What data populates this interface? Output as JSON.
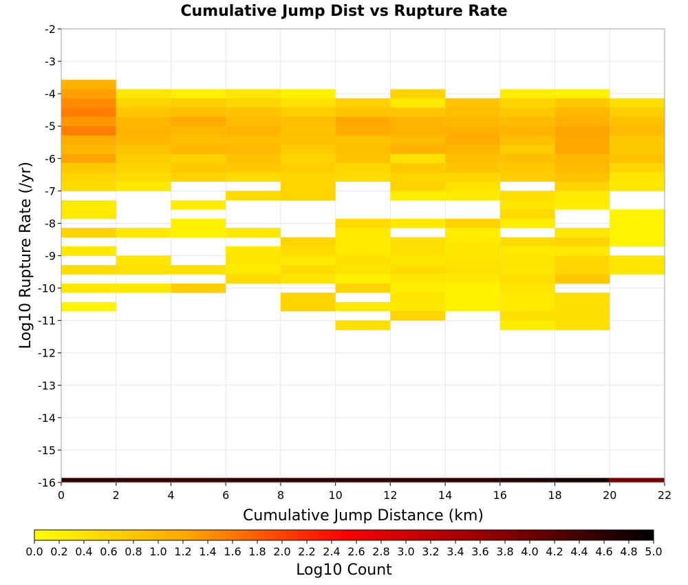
{
  "chart_data": {
    "type": "heatmap",
    "title": "Cumulative Jump Dist vs Rupture Rate",
    "xlabel": "Cumulative Jump Distance (km)",
    "ylabel": "Log10 Rupture Rate (/yr)",
    "xlim": [
      0,
      22
    ],
    "ylim": [
      -16,
      -2
    ],
    "xticks": [
      0,
      2,
      4,
      6,
      8,
      10,
      12,
      14,
      16,
      18,
      20,
      22
    ],
    "yticks": [
      -2,
      -3,
      -4,
      -5,
      -6,
      -7,
      -8,
      -9,
      -10,
      -11,
      -12,
      -13,
      -14,
      -15,
      -16
    ],
    "x_bin_width": 2,
    "y_bin_height": 0.2857,
    "grid": true,
    "colorbar": {
      "label": "Log10 Count",
      "min": 0.0,
      "max": 5.0,
      "ticks": [
        0.0,
        0.2,
        0.4,
        0.6,
        0.8,
        1.0,
        1.2,
        1.4,
        1.6,
        1.8,
        2.0,
        2.2,
        2.4,
        2.6,
        2.8,
        3.0,
        3.2,
        3.4,
        3.6,
        3.8,
        4.0,
        4.2,
        4.4,
        4.6,
        4.8,
        5.0
      ],
      "colors": [
        "#ffff00",
        "#ffa500",
        "#ff0000",
        "#8b0000",
        "#000000"
      ]
    },
    "columns": [
      {
        "x0": 0,
        "cells": [
          [
            -3.57,
            -3.86,
            1.05
          ],
          [
            -3.86,
            -4.14,
            1.3
          ],
          [
            -4.14,
            -4.43,
            1.45
          ],
          [
            -4.43,
            -4.71,
            1.55
          ],
          [
            -4.71,
            -5.0,
            1.35
          ],
          [
            -5.0,
            -5.29,
            1.55
          ],
          [
            -5.29,
            -5.57,
            1.15
          ],
          [
            -5.57,
            -5.86,
            1.0
          ],
          [
            -5.86,
            -6.14,
            1.25
          ],
          [
            -6.14,
            -6.43,
            0.75
          ],
          [
            -6.43,
            -6.71,
            0.6
          ],
          [
            -6.71,
            -7.0,
            0.5
          ],
          [
            -7.29,
            -7.57,
            0.3
          ],
          [
            -7.57,
            -7.86,
            0.3
          ],
          [
            -8.14,
            -8.43,
            0.6
          ],
          [
            -8.71,
            -9.0,
            0.3
          ],
          [
            -9.29,
            -9.57,
            0.5
          ],
          [
            -9.86,
            -10.14,
            0.3
          ],
          [
            -10.43,
            -10.71,
            0.15
          ],
          [
            -15.86,
            -16.0,
            4.6
          ]
        ]
      },
      {
        "x0": 2,
        "cells": [
          [
            -3.86,
            -4.14,
            0.35
          ],
          [
            -4.14,
            -4.43,
            0.6
          ],
          [
            -4.43,
            -4.71,
            0.8
          ],
          [
            -4.71,
            -5.0,
            1.0
          ],
          [
            -5.0,
            -5.29,
            1.05
          ],
          [
            -5.29,
            -5.57,
            1.0
          ],
          [
            -5.57,
            -5.86,
            0.85
          ],
          [
            -5.86,
            -6.14,
            0.7
          ],
          [
            -6.14,
            -6.43,
            0.6
          ],
          [
            -6.43,
            -6.71,
            0.5
          ],
          [
            -6.71,
            -7.0,
            0.3
          ],
          [
            -8.14,
            -8.43,
            0.3
          ],
          [
            -9.0,
            -9.29,
            0.35
          ],
          [
            -9.29,
            -9.57,
            0.45
          ],
          [
            -9.86,
            -10.14,
            0.3
          ],
          [
            -15.86,
            -16.0,
            4.5
          ]
        ]
      },
      {
        "x0": 4,
        "cells": [
          [
            -3.86,
            -4.14,
            0.2
          ],
          [
            -4.14,
            -4.43,
            0.7
          ],
          [
            -4.43,
            -4.71,
            0.9
          ],
          [
            -4.71,
            -5.0,
            1.15
          ],
          [
            -5.0,
            -5.29,
            1.0
          ],
          [
            -5.29,
            -5.57,
            0.9
          ],
          [
            -5.57,
            -5.86,
            1.0
          ],
          [
            -5.86,
            -6.14,
            0.6
          ],
          [
            -6.14,
            -6.43,
            0.75
          ],
          [
            -6.43,
            -6.71,
            0.6
          ],
          [
            -7.29,
            -7.57,
            0.25
          ],
          [
            -7.86,
            -8.14,
            0.2
          ],
          [
            -8.14,
            -8.43,
            0.2
          ],
          [
            -9.29,
            -9.57,
            0.45
          ],
          [
            -9.86,
            -10.14,
            0.7
          ],
          [
            -15.86,
            -16.0,
            4.5
          ]
        ]
      },
      {
        "x0": 6,
        "cells": [
          [
            -3.86,
            -4.14,
            0.35
          ],
          [
            -4.14,
            -4.43,
            0.55
          ],
          [
            -4.43,
            -4.71,
            0.85
          ],
          [
            -4.71,
            -5.0,
            0.95
          ],
          [
            -5.0,
            -5.29,
            1.05
          ],
          [
            -5.29,
            -5.57,
            0.9
          ],
          [
            -5.57,
            -5.86,
            0.95
          ],
          [
            -5.86,
            -6.14,
            0.85
          ],
          [
            -6.14,
            -6.43,
            0.75
          ],
          [
            -6.43,
            -6.71,
            0.5
          ],
          [
            -7.0,
            -7.29,
            0.5
          ],
          [
            -8.14,
            -8.43,
            0.3
          ],
          [
            -8.71,
            -9.0,
            0.3
          ],
          [
            -9.0,
            -9.29,
            0.35
          ],
          [
            -9.29,
            -9.57,
            0.3
          ],
          [
            -9.57,
            -9.86,
            0.5
          ],
          [
            -15.86,
            -16.0,
            4.6
          ]
        ]
      },
      {
        "x0": 8,
        "cells": [
          [
            -3.86,
            -4.14,
            0.2
          ],
          [
            -4.14,
            -4.43,
            0.4
          ],
          [
            -4.43,
            -4.71,
            0.7
          ],
          [
            -4.71,
            -5.0,
            0.9
          ],
          [
            -5.0,
            -5.29,
            0.85
          ],
          [
            -5.29,
            -5.57,
            0.9
          ],
          [
            -5.57,
            -5.86,
            0.75
          ],
          [
            -5.86,
            -6.14,
            0.6
          ],
          [
            -6.14,
            -6.43,
            0.7
          ],
          [
            -6.43,
            -6.71,
            0.55
          ],
          [
            -6.71,
            -7.0,
            0.6
          ],
          [
            -7.0,
            -7.29,
            0.6
          ],
          [
            -8.43,
            -8.71,
            0.6
          ],
          [
            -8.71,
            -9.0,
            0.5
          ],
          [
            -9.0,
            -9.29,
            0.3
          ],
          [
            -9.29,
            -9.57,
            0.5
          ],
          [
            -9.57,
            -9.86,
            0.35
          ],
          [
            -10.14,
            -10.43,
            0.6
          ],
          [
            -10.43,
            -10.71,
            0.6
          ],
          [
            -15.86,
            -16.0,
            4.6
          ]
        ]
      },
      {
        "x0": 10,
        "cells": [
          [
            -4.14,
            -4.43,
            0.65
          ],
          [
            -4.43,
            -4.71,
            0.8
          ],
          [
            -4.71,
            -5.0,
            1.2
          ],
          [
            -5.0,
            -5.29,
            1.15
          ],
          [
            -5.29,
            -5.57,
            0.85
          ],
          [
            -5.57,
            -5.86,
            0.9
          ],
          [
            -5.86,
            -6.14,
            0.85
          ],
          [
            -6.14,
            -6.43,
            0.55
          ],
          [
            -6.43,
            -6.71,
            0.5
          ],
          [
            -7.86,
            -8.14,
            0.5
          ],
          [
            -8.14,
            -8.43,
            0.3
          ],
          [
            -8.43,
            -8.71,
            0.3
          ],
          [
            -8.71,
            -9.0,
            0.3
          ],
          [
            -9.0,
            -9.29,
            0.45
          ],
          [
            -9.29,
            -9.57,
            0.35
          ],
          [
            -9.57,
            -9.86,
            0.2
          ],
          [
            -9.86,
            -10.14,
            0.6
          ],
          [
            -10.43,
            -10.71,
            0.3
          ],
          [
            -11.0,
            -11.29,
            0.45
          ],
          [
            -15.86,
            -16.0,
            4.55
          ]
        ]
      },
      {
        "x0": 12,
        "cells": [
          [
            -3.86,
            -4.14,
            0.6
          ],
          [
            -4.14,
            -4.43,
            0.3
          ],
          [
            -4.43,
            -4.71,
            0.8
          ],
          [
            -4.71,
            -5.0,
            1.05
          ],
          [
            -5.0,
            -5.29,
            1.05
          ],
          [
            -5.29,
            -5.57,
            0.95
          ],
          [
            -5.57,
            -5.86,
            1.05
          ],
          [
            -5.86,
            -6.14,
            0.4
          ],
          [
            -6.14,
            -6.43,
            0.75
          ],
          [
            -6.43,
            -6.71,
            0.6
          ],
          [
            -6.71,
            -7.0,
            0.6
          ],
          [
            -7.0,
            -7.29,
            0.25
          ],
          [
            -7.86,
            -8.14,
            0.3
          ],
          [
            -8.43,
            -8.71,
            0.45
          ],
          [
            -8.71,
            -9.0,
            0.45
          ],
          [
            -9.0,
            -9.29,
            0.35
          ],
          [
            -9.29,
            -9.57,
            0.5
          ],
          [
            -9.57,
            -9.86,
            0.35
          ],
          [
            -9.86,
            -10.14,
            0.25
          ],
          [
            -10.14,
            -10.43,
            0.35
          ],
          [
            -10.43,
            -10.71,
            0.3
          ],
          [
            -10.71,
            -11.0,
            0.55
          ],
          [
            -15.86,
            -16.0,
            4.6
          ]
        ]
      },
      {
        "x0": 14,
        "cells": [
          [
            -4.14,
            -4.43,
            0.8
          ],
          [
            -4.43,
            -4.71,
            0.9
          ],
          [
            -4.71,
            -5.0,
            1.0
          ],
          [
            -5.0,
            -5.29,
            1.1
          ],
          [
            -5.29,
            -5.57,
            1.15
          ],
          [
            -5.57,
            -5.86,
            1.0
          ],
          [
            -5.86,
            -6.14,
            0.9
          ],
          [
            -6.14,
            -6.43,
            0.8
          ],
          [
            -6.43,
            -6.71,
            0.55
          ],
          [
            -6.71,
            -7.0,
            0.4
          ],
          [
            -7.0,
            -7.29,
            0.3
          ],
          [
            -7.86,
            -8.14,
            0.6
          ],
          [
            -8.14,
            -8.43,
            0.25
          ],
          [
            -8.43,
            -8.71,
            0.3
          ],
          [
            -8.71,
            -9.0,
            0.35
          ],
          [
            -9.0,
            -9.29,
            0.4
          ],
          [
            -9.29,
            -9.57,
            0.4
          ],
          [
            -9.57,
            -9.86,
            0.3
          ],
          [
            -9.86,
            -10.14,
            0.2
          ],
          [
            -10.14,
            -10.43,
            0.2
          ],
          [
            -10.43,
            -10.71,
            0.2
          ],
          [
            -15.86,
            -16.0,
            4.6
          ]
        ]
      },
      {
        "x0": 16,
        "cells": [
          [
            -3.86,
            -4.14,
            0.25
          ],
          [
            -4.14,
            -4.43,
            0.6
          ],
          [
            -4.43,
            -4.71,
            0.75
          ],
          [
            -4.71,
            -5.0,
            0.95
          ],
          [
            -5.0,
            -5.29,
            1.05
          ],
          [
            -5.29,
            -5.57,
            0.9
          ],
          [
            -5.57,
            -5.86,
            0.7
          ],
          [
            -5.86,
            -6.14,
            0.9
          ],
          [
            -6.14,
            -6.43,
            0.75
          ],
          [
            -6.43,
            -6.71,
            0.7
          ],
          [
            -7.0,
            -7.29,
            0.45
          ],
          [
            -7.29,
            -7.57,
            0.35
          ],
          [
            -7.57,
            -7.86,
            0.5
          ],
          [
            -7.86,
            -8.14,
            0.25
          ],
          [
            -8.43,
            -8.71,
            0.5
          ],
          [
            -8.71,
            -9.0,
            0.3
          ],
          [
            -9.0,
            -9.29,
            0.35
          ],
          [
            -9.29,
            -9.57,
            0.35
          ],
          [
            -9.57,
            -9.86,
            0.45
          ],
          [
            -9.86,
            -10.14,
            0.35
          ],
          [
            -10.14,
            -10.43,
            0.3
          ],
          [
            -10.43,
            -10.71,
            0.3
          ],
          [
            -10.71,
            -11.0,
            0.45
          ],
          [
            -11.0,
            -11.29,
            0.25
          ],
          [
            -15.86,
            -16.0,
            4.7
          ]
        ]
      },
      {
        "x0": 18,
        "cells": [
          [
            -3.86,
            -4.14,
            0.2
          ],
          [
            -4.14,
            -4.43,
            0.75
          ],
          [
            -4.43,
            -4.71,
            1.0
          ],
          [
            -4.71,
            -5.0,
            1.1
          ],
          [
            -5.0,
            -5.29,
            1.25
          ],
          [
            -5.29,
            -5.57,
            1.2
          ],
          [
            -5.57,
            -5.86,
            1.2
          ],
          [
            -5.86,
            -6.14,
            1.0
          ],
          [
            -6.14,
            -6.43,
            0.95
          ],
          [
            -6.43,
            -6.71,
            0.85
          ],
          [
            -6.71,
            -7.0,
            0.6
          ],
          [
            -7.0,
            -7.29,
            0.3
          ],
          [
            -7.29,
            -7.57,
            0.25
          ],
          [
            -8.14,
            -8.43,
            0.3
          ],
          [
            -8.43,
            -8.71,
            0.6
          ],
          [
            -8.71,
            -9.0,
            0.3
          ],
          [
            -9.0,
            -9.29,
            0.55
          ],
          [
            -9.29,
            -9.57,
            0.55
          ],
          [
            -9.57,
            -9.86,
            0.75
          ],
          [
            -10.14,
            -10.43,
            0.45
          ],
          [
            -10.43,
            -10.71,
            0.45
          ],
          [
            -10.71,
            -11.0,
            0.45
          ],
          [
            -11.0,
            -11.29,
            0.45
          ],
          [
            -15.86,
            -16.0,
            4.8
          ]
        ]
      },
      {
        "x0": 20,
        "cells": [
          [
            -4.14,
            -4.43,
            0.45
          ],
          [
            -4.43,
            -4.71,
            0.7
          ],
          [
            -4.71,
            -5.0,
            0.85
          ],
          [
            -5.0,
            -5.29,
            0.95
          ],
          [
            -5.29,
            -5.57,
            0.75
          ],
          [
            -5.57,
            -5.86,
            0.75
          ],
          [
            -5.86,
            -6.14,
            0.85
          ],
          [
            -6.14,
            -6.43,
            0.55
          ],
          [
            -6.43,
            -6.71,
            0.35
          ],
          [
            -6.71,
            -7.0,
            0.3
          ],
          [
            -7.57,
            -7.86,
            0.15
          ],
          [
            -7.86,
            -8.14,
            0.15
          ],
          [
            -8.14,
            -8.43,
            0.15
          ],
          [
            -8.43,
            -8.71,
            0.15
          ],
          [
            -9.0,
            -9.29,
            0.35
          ],
          [
            -9.29,
            -9.57,
            0.35
          ],
          [
            -15.86,
            -16.0,
            3.9
          ]
        ]
      }
    ]
  }
}
